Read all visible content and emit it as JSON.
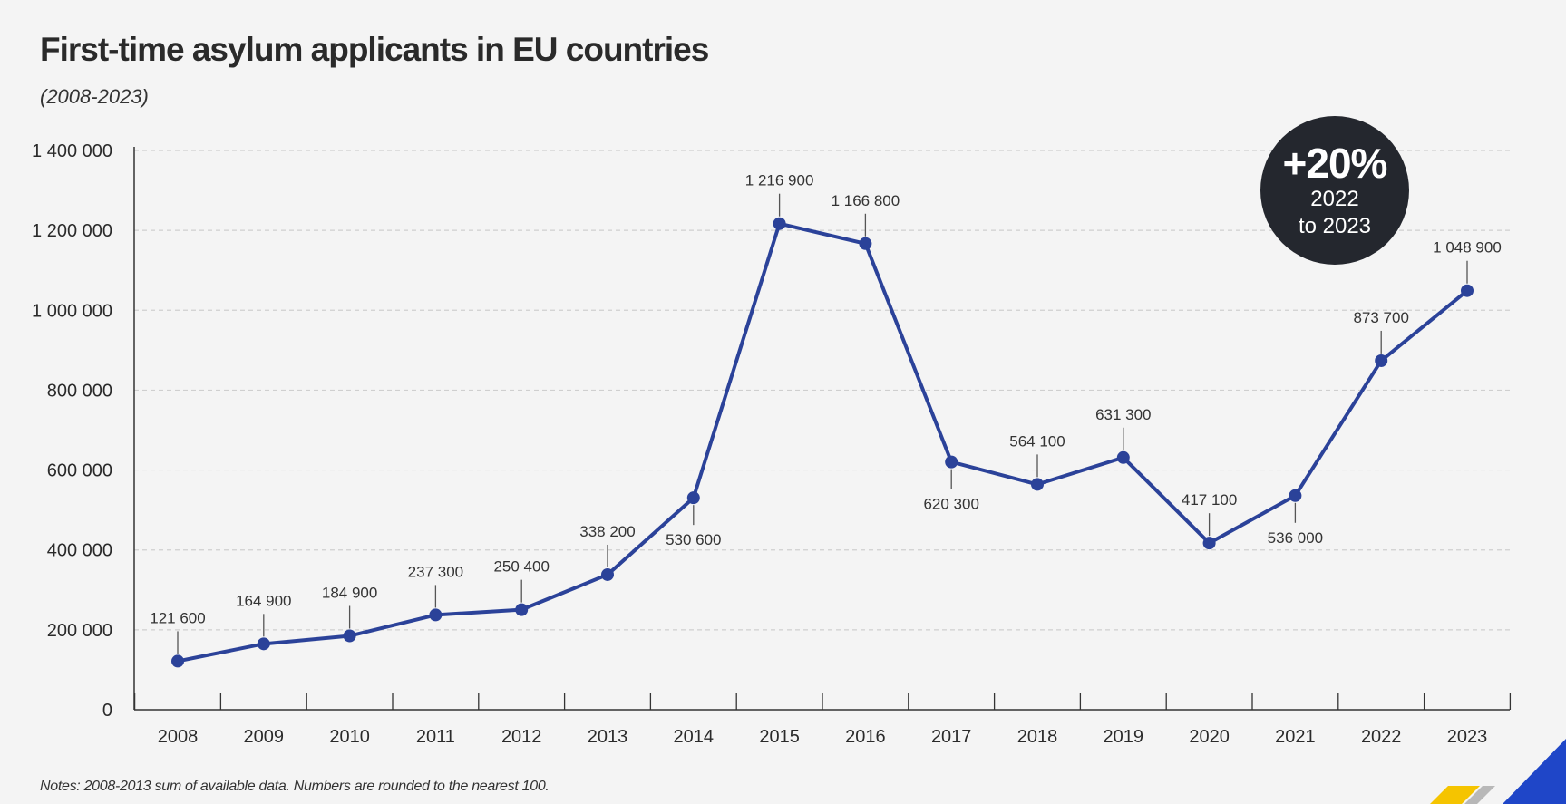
{
  "title": "First-time asylum applicants in EU countries",
  "subtitle": "(2008-2023)",
  "notes": "Notes: 2008-2013 sum of available data. Numbers are rounded to the nearest 100.",
  "badge": {
    "percent": "+20%",
    "line1": "2022",
    "line2": "to 2023"
  },
  "colors": {
    "line": "#2b4299",
    "badge_bg": "#24272e",
    "grid": "#cfcfcf",
    "accent_yellow": "#f5c400",
    "accent_blue": "#1f46c8"
  },
  "chart_data": {
    "type": "line",
    "x": [
      "2008",
      "2009",
      "2010",
      "2011",
      "2012",
      "2013",
      "2014",
      "2015",
      "2016",
      "2017",
      "2018",
      "2019",
      "2020",
      "2021",
      "2022",
      "2023"
    ],
    "series": [
      {
        "values": [
          121600,
          164900,
          184900,
          237300,
          250400,
          338200,
          530600,
          1216900,
          1166800,
          620300,
          564100,
          631300,
          417100,
          536000,
          873700,
          1048900
        ],
        "labels": [
          "121 600",
          "164 900",
          "184 900",
          "237 300",
          "250 400",
          "338 200",
          "530 600",
          "1 216 900",
          "1 166 800",
          "620 300",
          "564 100",
          "631 300",
          "417 100",
          "536 000",
          "873 700",
          "1 048 900"
        ],
        "label_position": [
          "above",
          "above",
          "above",
          "above",
          "above",
          "above",
          "below",
          "above",
          "above",
          "below",
          "above",
          "above",
          "above",
          "below",
          "above",
          "above"
        ]
      }
    ],
    "ylim": [
      0,
      1400000
    ],
    "yticks": [
      0,
      200000,
      400000,
      600000,
      800000,
      1000000,
      1200000,
      1400000
    ],
    "ytick_labels": [
      "0",
      "200 000",
      "400 000",
      "600 000",
      "800 000",
      "1 000 000",
      "1 200 000",
      "1 400 000"
    ],
    "grid": true,
    "xlabel": "",
    "ylabel": ""
  }
}
